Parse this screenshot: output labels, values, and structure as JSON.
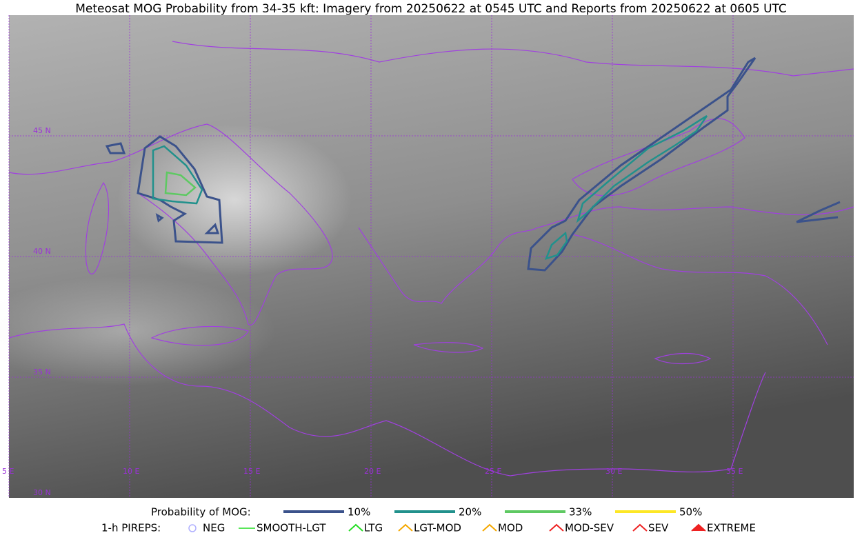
{
  "title": "Meteosat MOG Probability from 34-35 kft: Imagery from 20250622 at 0545 UTC and Reports from 20250622 at 0605 UTC",
  "map": {
    "lat_labels": [
      "45 N",
      "40 N",
      "35 N",
      "30 N"
    ],
    "lon_labels": [
      "5 E",
      "10 E",
      "15 E",
      "20 E",
      "25 E",
      "30 E",
      "35 E"
    ]
  },
  "legend": {
    "probability": {
      "label": "Probability of MOG:",
      "items": [
        {
          "label": "10%",
          "color": "#3b528b"
        },
        {
          "label": "20%",
          "color": "#21918c"
        },
        {
          "label": "33%",
          "color": "#5ec962"
        },
        {
          "label": "50%",
          "color": "#fde725"
        }
      ]
    },
    "pireps": {
      "label": "1-h PIREPS:",
      "items": [
        {
          "label": "NEG",
          "color": "#b0b0ff"
        },
        {
          "label": "SMOOTH-LGT",
          "color": "#22dd22"
        },
        {
          "label": "LTG",
          "color": "#22dd22"
        },
        {
          "label": "LGT-MOD",
          "color": "#f5a800"
        },
        {
          "label": "MOD",
          "color": "#f5a800"
        },
        {
          "label": "MOD-SEV",
          "color": "#ee2222"
        },
        {
          "label": "SEV",
          "color": "#ee2222"
        },
        {
          "label": "EXTREME",
          "color": "#ee2222"
        }
      ]
    }
  }
}
